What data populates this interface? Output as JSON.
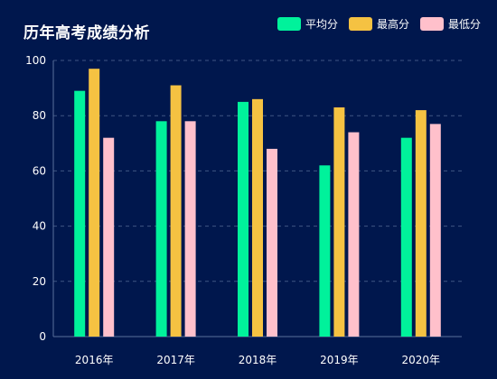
{
  "title": "历年高考成绩分析",
  "colors": {
    "background": "#00174d",
    "grid": "#3f5683",
    "axis": "#5a6f9a",
    "text": "#ffffff"
  },
  "chart_data": {
    "type": "bar",
    "title": "历年高考成绩分析",
    "xlabel": "",
    "ylabel": "",
    "categories": [
      "2016年",
      "2017年",
      "2018年",
      "2019年",
      "2020年"
    ],
    "ylim": [
      0,
      100
    ],
    "yticks": [
      0,
      20,
      40,
      60,
      80,
      100
    ],
    "grid": true,
    "legend_position": "top-right",
    "series": [
      {
        "name": "平均分",
        "color": "#00f29b",
        "values": [
          89,
          78,
          85,
          62,
          72
        ]
      },
      {
        "name": "最高分",
        "color": "#f5c242",
        "values": [
          97,
          91,
          86,
          83,
          82
        ]
      },
      {
        "name": "最低分",
        "color": "#ffc0cb",
        "values": [
          72,
          78,
          68,
          74,
          77
        ]
      }
    ]
  }
}
